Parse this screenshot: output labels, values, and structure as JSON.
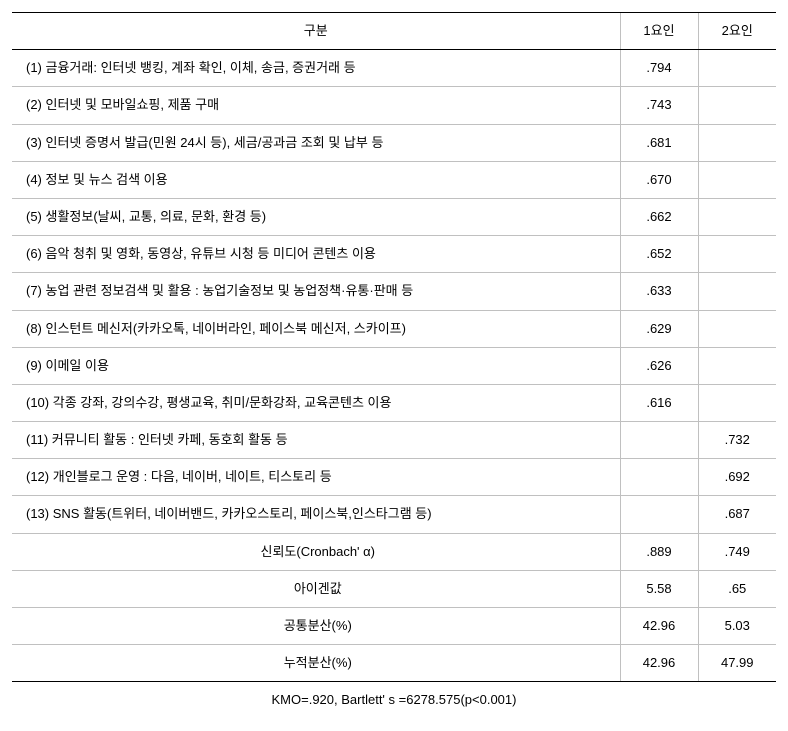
{
  "header": {
    "col_label": "구분",
    "col_f1": "1요인",
    "col_f2": "2요인"
  },
  "rows": [
    {
      "label": "(1) 금융거래: 인터넷 뱅킹, 계좌 확인, 이체, 송금, 증권거래 등",
      "f1": ".794",
      "f2": ""
    },
    {
      "label": "(2) 인터넷 및 모바일쇼핑, 제품 구매",
      "f1": ".743",
      "f2": ""
    },
    {
      "label": "(3) 인터넷 증명서 발급(민원 24시 등), 세금/공과금 조회 및 납부 등",
      "f1": ".681",
      "f2": ""
    },
    {
      "label": "(4) 정보 및 뉴스 검색 이용",
      "f1": ".670",
      "f2": ""
    },
    {
      "label": "(5) 생활정보(날씨, 교통, 의료, 문화, 환경 등)",
      "f1": ".662",
      "f2": ""
    },
    {
      "label": "(6) 음악 청취 및 영화, 동영상, 유튜브 시청 등 미디어 콘텐츠 이용",
      "f1": ".652",
      "f2": ""
    },
    {
      "label": "(7) 농업 관련 정보검색 및 활용 : 농업기술정보 및 농업정책·유통·판매 등",
      "f1": ".633",
      "f2": ""
    },
    {
      "label": "(8) 인스턴트 메신저(카카오톡, 네이버라인, 페이스북 메신저, 스카이프)",
      "f1": ".629",
      "f2": ""
    },
    {
      "label": "(9) 이메일 이용",
      "f1": ".626",
      "f2": ""
    },
    {
      "label": "(10) 각종 강좌, 강의수강, 평생교육, 취미/문화강좌, 교육콘텐츠 이용",
      "f1": ".616",
      "f2": ""
    },
    {
      "label": "(11) 커뮤니티 활동 : 인터넷 카페, 동호회 활동 등",
      "f1": "",
      "f2": ".732"
    },
    {
      "label": "(12) 개인블로그 운영 : 다음, 네이버, 네이트, 티스토리 등",
      "f1": "",
      "f2": ".692"
    },
    {
      "label": "(13) SNS 활동(트위터, 네이버밴드, 카카오스토리, 페이스북,인스타그램 등)",
      "f1": "",
      "f2": ".687"
    }
  ],
  "stats": [
    {
      "label": "신뢰도(Cronbach' α)",
      "f1": ".889",
      "f2": ".749"
    },
    {
      "label": "아이겐값",
      "f1": "5.58",
      "f2": ".65"
    },
    {
      "label": "공통분산(%)",
      "f1": "42.96",
      "f2": "5.03"
    },
    {
      "label": "누적분산(%)",
      "f1": "42.96",
      "f2": "47.99"
    }
  ],
  "footer": {
    "note": "KMO=.920, Bartlett' s =6278.575(p<0.001)"
  }
}
